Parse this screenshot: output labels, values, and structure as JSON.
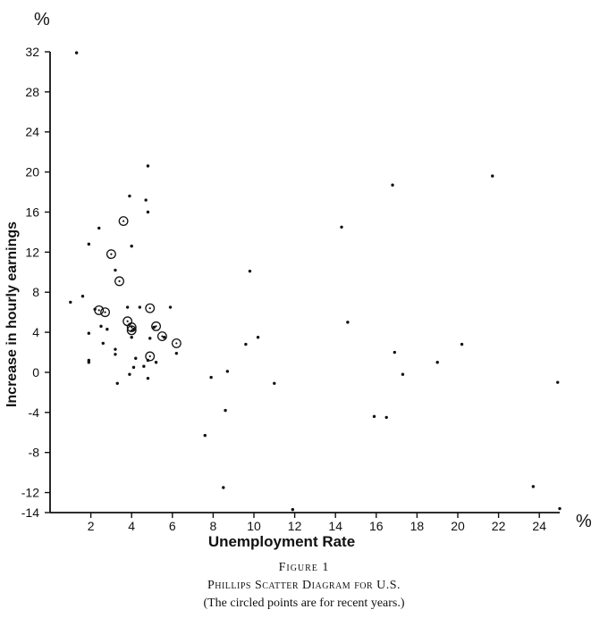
{
  "chart_data": {
    "type": "scatter",
    "xlabel": "Unemployment Rate",
    "ylabel": "Increase in hourly earnings",
    "x_unit": "%",
    "y_unit": "%",
    "xlim": [
      0,
      25
    ],
    "ylim": [
      -14,
      32
    ],
    "x_ticks": [
      2,
      4,
      6,
      8,
      10,
      12,
      14,
      16,
      18,
      20,
      22,
      24
    ],
    "y_ticks": [
      -14,
      -12,
      -8,
      -4,
      0,
      4,
      8,
      12,
      16,
      20,
      24,
      28,
      32
    ],
    "grid": false,
    "series": [
      {
        "marker": "dot",
        "points": [
          [
            1.3,
            31.9
          ],
          [
            4.8,
            20.6
          ],
          [
            21.7,
            19.6
          ],
          [
            16.8,
            18.7
          ],
          [
            3.9,
            17.6
          ],
          [
            4.7,
            17.2
          ],
          [
            4.8,
            16.0
          ],
          [
            14.3,
            14.5
          ],
          [
            2.4,
            14.4
          ],
          [
            1.9,
            12.8
          ],
          [
            4.0,
            12.6
          ],
          [
            3.2,
            10.2
          ],
          [
            9.8,
            10.1
          ],
          [
            1.6,
            7.6
          ],
          [
            1.0,
            7.0
          ],
          [
            3.8,
            6.5
          ],
          [
            4.4,
            6.5
          ],
          [
            5.9,
            6.5
          ],
          [
            2.2,
            6.3
          ],
          [
            14.6,
            5.0
          ],
          [
            2.5,
            4.6
          ],
          [
            5.1,
            4.5
          ],
          [
            4.1,
            4.3
          ],
          [
            2.8,
            4.3
          ],
          [
            1.9,
            3.9
          ],
          [
            4.0,
            3.5
          ],
          [
            5.6,
            3.5
          ],
          [
            10.2,
            3.5
          ],
          [
            4.9,
            3.4
          ],
          [
            2.6,
            2.9
          ],
          [
            9.6,
            2.8
          ],
          [
            20.2,
            2.8
          ],
          [
            3.2,
            2.3
          ],
          [
            3.2,
            1.8
          ],
          [
            16.9,
            2.0
          ],
          [
            6.2,
            1.9
          ],
          [
            4.2,
            1.4
          ],
          [
            4.8,
            1.2
          ],
          [
            1.9,
            1.2
          ],
          [
            5.2,
            1.0
          ],
          [
            1.9,
            1.0
          ],
          [
            19.0,
            1.0
          ],
          [
            4.6,
            0.6
          ],
          [
            4.1,
            0.5
          ],
          [
            8.7,
            0.1
          ],
          [
            3.9,
            -0.2
          ],
          [
            17.3,
            -0.2
          ],
          [
            7.9,
            -0.5
          ],
          [
            4.8,
            -0.6
          ],
          [
            3.3,
            -1.1
          ],
          [
            11.0,
            -1.1
          ],
          [
            24.9,
            -1.0
          ],
          [
            8.6,
            -3.8
          ],
          [
            15.9,
            -4.4
          ],
          [
            16.5,
            -4.5
          ],
          [
            7.6,
            -6.3
          ],
          [
            8.5,
            -11.5
          ],
          [
            23.7,
            -11.4
          ],
          [
            11.9,
            -13.7
          ],
          [
            25.0,
            -13.6
          ]
        ]
      },
      {
        "marker": "circle",
        "points": [
          [
            3.6,
            15.1
          ],
          [
            3.0,
            11.8
          ],
          [
            3.4,
            9.1
          ],
          [
            4.9,
            6.4
          ],
          [
            2.4,
            6.2
          ],
          [
            2.7,
            6.0
          ],
          [
            3.8,
            5.1
          ],
          [
            4.0,
            4.5
          ],
          [
            4.0,
            4.2
          ],
          [
            5.2,
            4.6
          ],
          [
            5.5,
            3.6
          ],
          [
            6.2,
            2.9
          ],
          [
            4.9,
            1.6
          ]
        ]
      }
    ]
  },
  "caption": {
    "label": "Figure 1",
    "title": "Phillips Scatter Diagram for U.S.",
    "note": "(The circled points are for recent years.)"
  }
}
